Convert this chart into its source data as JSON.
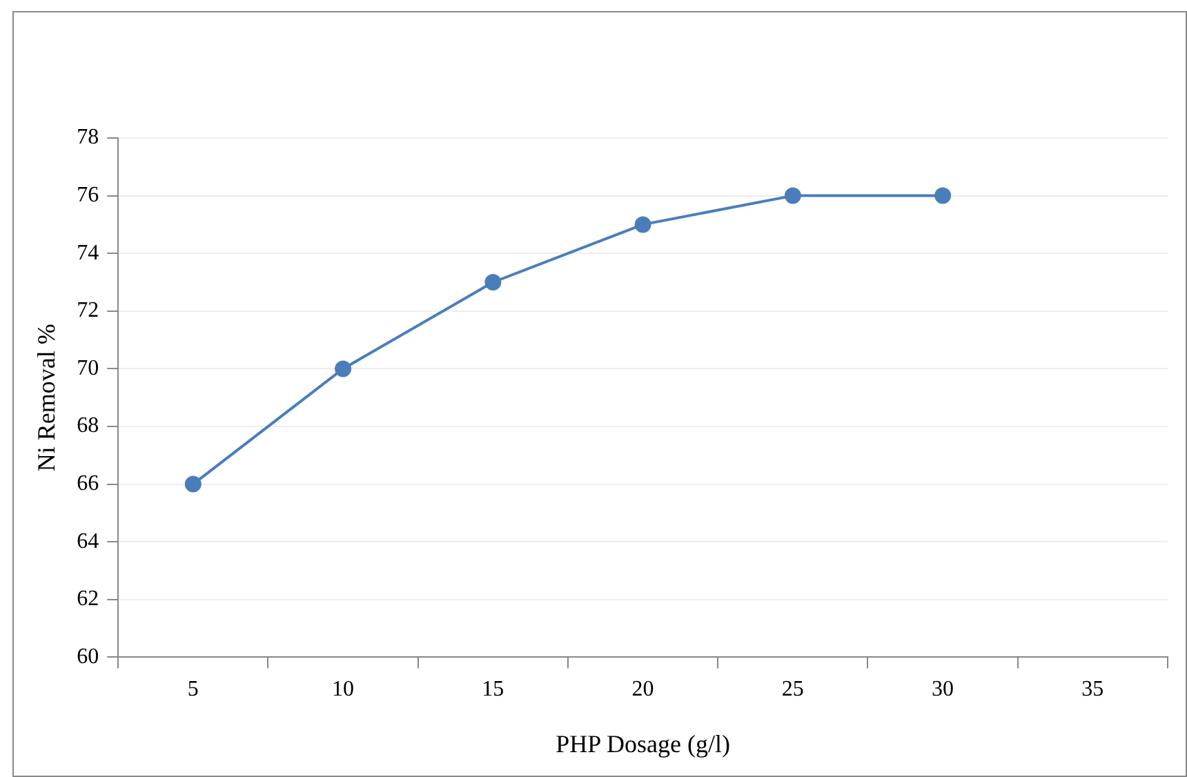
{
  "chart_data": {
    "type": "line",
    "xlabel": "PHP Dosage (g/l)",
    "ylabel": "Ni Removal %",
    "categories": [
      "5",
      "10",
      "15",
      "20",
      "25",
      "30",
      "35"
    ],
    "series": [
      {
        "color": "#4a7ebb",
        "values": [
          66,
          70,
          73,
          75,
          76,
          76,
          null
        ]
      }
    ],
    "ylim": [
      60,
      78
    ],
    "yticks": [
      60,
      62,
      64,
      66,
      68,
      70,
      72,
      74,
      76,
      78
    ],
    "grid": "y",
    "legend": false,
    "marker": "circle",
    "line_style": "solid"
  }
}
